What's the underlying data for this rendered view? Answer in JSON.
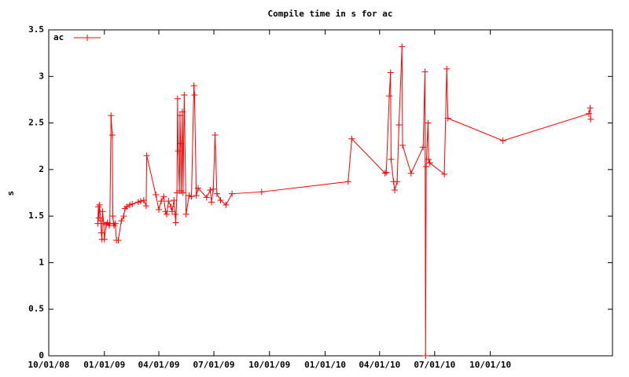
{
  "chart_data": {
    "type": "line",
    "title": "Compile time in s for ac",
    "y_label": "s",
    "x": [
      "2008-12-21",
      "2008-12-22",
      "2008-12-23",
      "2008-12-24",
      "2008-12-26",
      "2008-12-27",
      "2008-12-28",
      "2008-12-29",
      "2008-12-31",
      "2009-01-01",
      "2009-01-04",
      "2009-01-06",
      "2009-01-09",
      "2009-01-10",
      "2009-01-12",
      "2009-01-14",
      "2009-01-15",
      "2009-01-16",
      "2009-01-17",
      "2009-01-19",
      "2009-01-21",
      "2009-01-24",
      "2009-01-29",
      "2009-02-02",
      "2009-02-04",
      "2009-02-07",
      "2009-02-12",
      "2009-02-16",
      "2009-02-26",
      "2009-03-02",
      "2009-03-07",
      "2009-03-11",
      "2009-03-12",
      "2009-03-27",
      "2009-04-01",
      "2009-04-05",
      "2009-04-09",
      "2009-04-12",
      "2009-04-14",
      "2009-04-17",
      "2009-04-21",
      "2009-04-23",
      "2009-04-26",
      "2009-04-28",
      "2009-04-29",
      "2009-05-01",
      "2009-05-02",
      "2009-05-03",
      "2009-05-05",
      "2009-05-06",
      "2009-05-07",
      "2009-05-08",
      "2009-05-10",
      "2009-05-11",
      "2009-05-13",
      "2009-05-16",
      "2009-05-21",
      "2009-05-25",
      "2009-05-29",
      "2009-05-30",
      "2009-06-02",
      "2009-06-05",
      "2009-06-19",
      "2009-06-25",
      "2009-06-27",
      "2009-06-30",
      "2009-07-03",
      "2009-07-06",
      "2009-07-12",
      "2009-07-21",
      "2009-07-31",
      "2009-09-18",
      "2010-02-08",
      "2010-02-14",
      "2010-04-10",
      "2010-04-12",
      "2010-04-17",
      "2010-04-19",
      "2010-04-20",
      "2010-04-24",
      "2010-04-26",
      "2010-04-30",
      "2010-05-03",
      "2010-05-08",
      "2010-05-09",
      "2010-05-23",
      "2010-06-12",
      "2010-06-15",
      "2010-06-16",
      "2010-06-17",
      "2010-06-20",
      "2010-06-21",
      "2010-06-23",
      "2010-07-17",
      "2010-07-21",
      "2010-07-23",
      "2010-10-22",
      "2011-03-13",
      "2011-03-15",
      "2011-03-16"
    ],
    "series": [
      {
        "name": "ac",
        "color": "#ff0000",
        "values": [
          1.42,
          1.6,
          1.48,
          1.62,
          1.45,
          1.32,
          1.25,
          1.55,
          1.42,
          1.25,
          1.41,
          1.43,
          1.4,
          1.42,
          2.58,
          2.37,
          1.5,
          1.42,
          1.4,
          1.42,
          1.24,
          1.24,
          1.45,
          1.5,
          1.58,
          1.6,
          1.62,
          1.63,
          1.65,
          1.66,
          1.67,
          1.61,
          2.15,
          1.73,
          1.57,
          1.66,
          1.71,
          1.55,
          1.52,
          1.66,
          1.6,
          1.55,
          1.67,
          1.52,
          1.43,
          1.75,
          2.76,
          2.2,
          1.77,
          2.58,
          2.28,
          1.77,
          2.62,
          1.75,
          2.8,
          1.52,
          1.72,
          1.71,
          2.9,
          2.8,
          1.72,
          1.8,
          1.7,
          1.78,
          1.65,
          1.79,
          2.37,
          1.74,
          1.67,
          1.62,
          1.74,
          1.76,
          1.87,
          2.33,
          1.96,
          1.97,
          2.79,
          3.04,
          2.11,
          1.87,
          1.78,
          1.87,
          2.48,
          3.32,
          2.26,
          1.96,
          2.24,
          3.05,
          0,
          2.03,
          2.5,
          2.11,
          2.07,
          1.95,
          3.08,
          2.55,
          2.31,
          2.6,
          2.66,
          2.54
        ]
      }
    ],
    "xlim": [
      "2008-10-01",
      "2011-04-21"
    ],
    "xticks": [
      {
        "value": "2008-10-01",
        "label": "10/01/08"
      },
      {
        "value": "2009-01-01",
        "label": "01/01/09"
      },
      {
        "value": "2009-04-01",
        "label": "04/01/09"
      },
      {
        "value": "2009-07-01",
        "label": "07/01/09"
      },
      {
        "value": "2009-10-01",
        "label": "10/01/09"
      },
      {
        "value": "2010-01-01",
        "label": "01/01/10"
      },
      {
        "value": "2010-04-01",
        "label": "04/01/10"
      },
      {
        "value": "2010-07-01",
        "label": "07/01/10"
      },
      {
        "value": "2010-10-01",
        "label": "10/01/10"
      }
    ],
    "ylim": [
      0,
      3.5
    ],
    "yticks": [
      0,
      0.5,
      1,
      1.5,
      2,
      2.5,
      3,
      3.5
    ],
    "legend": "top-left"
  }
}
